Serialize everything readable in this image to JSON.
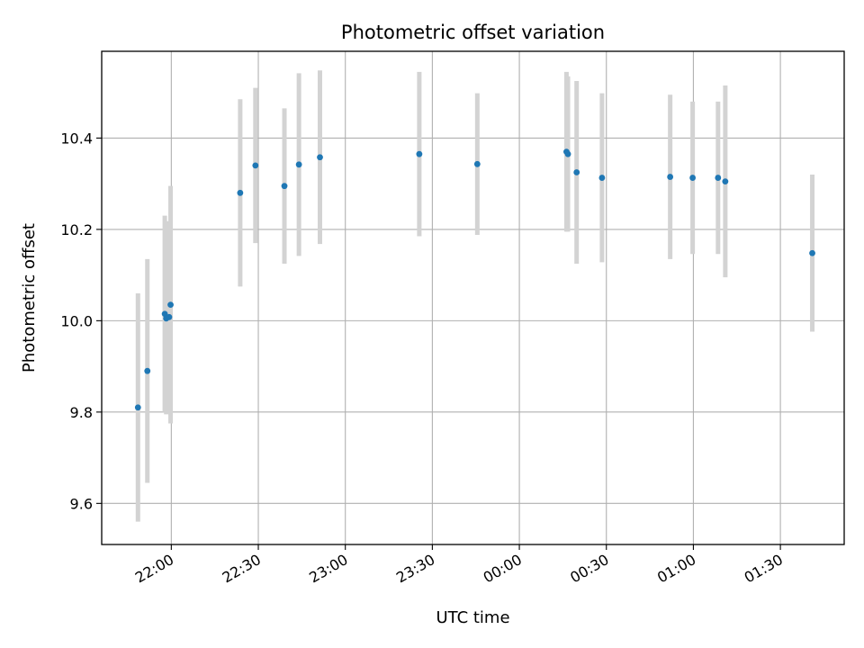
{
  "chart_data": {
    "type": "scatter",
    "title": "Photometric offset variation",
    "xlabel": "UTC time",
    "ylabel": "Photometric offset",
    "grid": true,
    "x_ticks": [
      "22:00",
      "22:30",
      "23:00",
      "23:30",
      "00:00",
      "00:30",
      "01:00",
      "01:30"
    ],
    "y_ticks": [
      "9.6",
      "9.8",
      "10.0",
      "10.2",
      "10.4"
    ],
    "xlim": [
      "21:36",
      "01:52"
    ],
    "ylim": [
      9.51,
      10.59
    ],
    "colors": {
      "point": "#1f77b4",
      "errorbar": "#d3d3d3",
      "grid": "#b0b0b0"
    },
    "series": [
      {
        "points": [
          {
            "x": "21:48:30",
            "y": 9.81,
            "err": 0.25
          },
          {
            "x": "21:51:45",
            "y": 9.89,
            "err": 0.245
          },
          {
            "x": "21:57:45",
            "y": 10.015,
            "err": 0.215
          },
          {
            "x": "21:58:15",
            "y": 10.005,
            "err": 0.21
          },
          {
            "x": "21:59:15",
            "y": 10.008,
            "err": 0.21
          },
          {
            "x": "21:59:45",
            "y": 10.035,
            "err": 0.26
          },
          {
            "x": "22:23:45",
            "y": 10.28,
            "err": 0.205
          },
          {
            "x": "22:29:00",
            "y": 10.34,
            "err": 0.17
          },
          {
            "x": "22:39:00",
            "y": 10.295,
            "err": 0.17
          },
          {
            "x": "22:44:00",
            "y": 10.342,
            "err": 0.2
          },
          {
            "x": "22:51:15",
            "y": 10.358,
            "err": 0.19
          },
          {
            "x": "23:25:30",
            "y": 10.365,
            "err": 0.18
          },
          {
            "x": "23:45:30",
            "y": 10.343,
            "err": 0.155
          },
          {
            "x": "00:16:15",
            "y": 10.37,
            "err": 0.175
          },
          {
            "x": "00:16:45",
            "y": 10.365,
            "err": 0.17
          },
          {
            "x": "00:19:45",
            "y": 10.325,
            "err": 0.2
          },
          {
            "x": "00:28:30",
            "y": 10.313,
            "err": 0.185
          },
          {
            "x": "00:52:00",
            "y": 10.315,
            "err": 0.18
          },
          {
            "x": "00:59:45",
            "y": 10.313,
            "err": 0.167
          },
          {
            "x": "01:08:30",
            "y": 10.313,
            "err": 0.167
          },
          {
            "x": "01:11:00",
            "y": 10.305,
            "err": 0.21
          },
          {
            "x": "01:41:00",
            "y": 10.148,
            "err": 0.172
          }
        ]
      }
    ]
  }
}
